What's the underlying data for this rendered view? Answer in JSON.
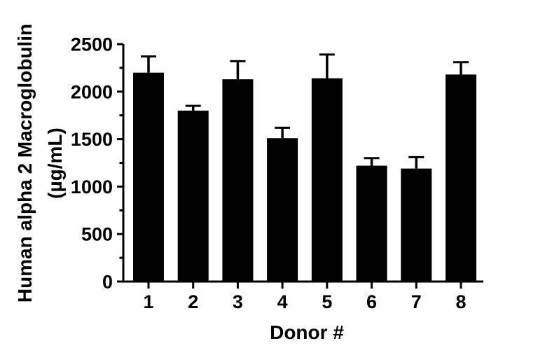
{
  "figure": {
    "background": "#ffffff"
  },
  "chart_data": {
    "type": "bar",
    "title": "",
    "xlabel": "Donor #",
    "ylabel_line1": "Human alpha 2 Macroglobulin",
    "ylabel_line2": "(µg/mL)",
    "categories": [
      "1",
      "2",
      "3",
      "4",
      "5",
      "6",
      "7",
      "8"
    ],
    "values": [
      2200,
      1800,
      2130,
      1510,
      2140,
      1220,
      1190,
      2180
    ],
    "errors_upper": [
      170,
      50,
      190,
      110,
      250,
      80,
      120,
      130
    ],
    "error_bar_direction": "upper",
    "ylim": [
      0,
      2500
    ],
    "yticks": [
      0,
      500,
      1000,
      1500,
      2000,
      2500
    ],
    "y_minor_step": 250,
    "bar_color": "#000000",
    "axis_color": "#000000",
    "grid": "off",
    "legend": "none"
  }
}
